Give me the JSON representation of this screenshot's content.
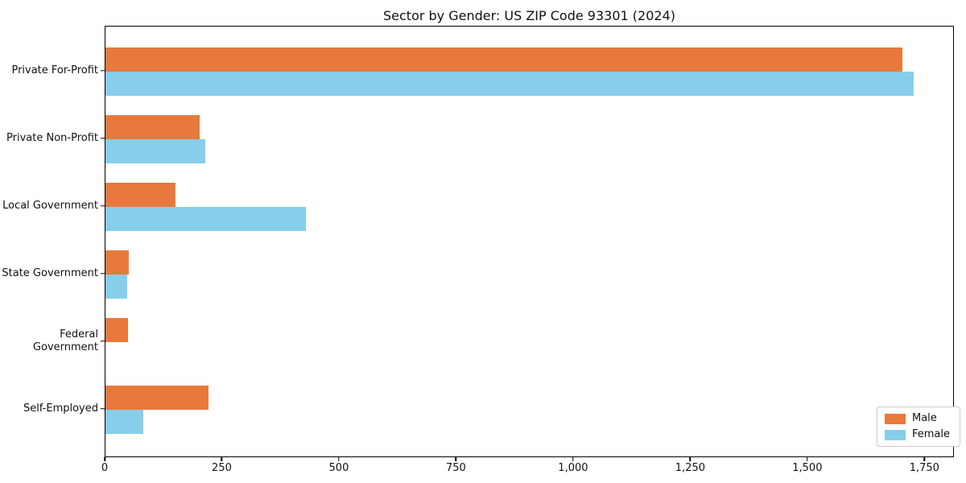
{
  "chart_data": {
    "type": "bar",
    "orientation": "horizontal",
    "title": "Sector by Gender: US ZIP Code 93301 (2024)",
    "categories": [
      "Private For-Profit",
      "Private Non-Profit",
      "Local Government",
      "State Government",
      "Federal Government",
      "Self-Employed"
    ],
    "series": [
      {
        "name": "Male",
        "color": "#e8793d",
        "values": [
          1705,
          202,
          149,
          50,
          49,
          220
        ]
      },
      {
        "name": "Female",
        "color": "#87ceeb",
        "values": [
          1728,
          214,
          428,
          46,
          0,
          81
        ]
      }
    ],
    "xlabel": "",
    "ylabel": "",
    "xlim": [
      0,
      1813
    ],
    "x_ticks": [
      0,
      250,
      500,
      750,
      1000,
      1250,
      1500,
      1750
    ],
    "x_tick_labels": [
      "0",
      "250",
      "500",
      "750",
      "1,000",
      "1,250",
      "1,500",
      "1,750"
    ],
    "grid": false,
    "legend": {
      "position": "lower right",
      "entries": [
        "Male",
        "Female"
      ]
    },
    "colors": {
      "male": "#e8793d",
      "female": "#87ceeb",
      "spine": "#000000",
      "background": "#ffffff"
    }
  }
}
